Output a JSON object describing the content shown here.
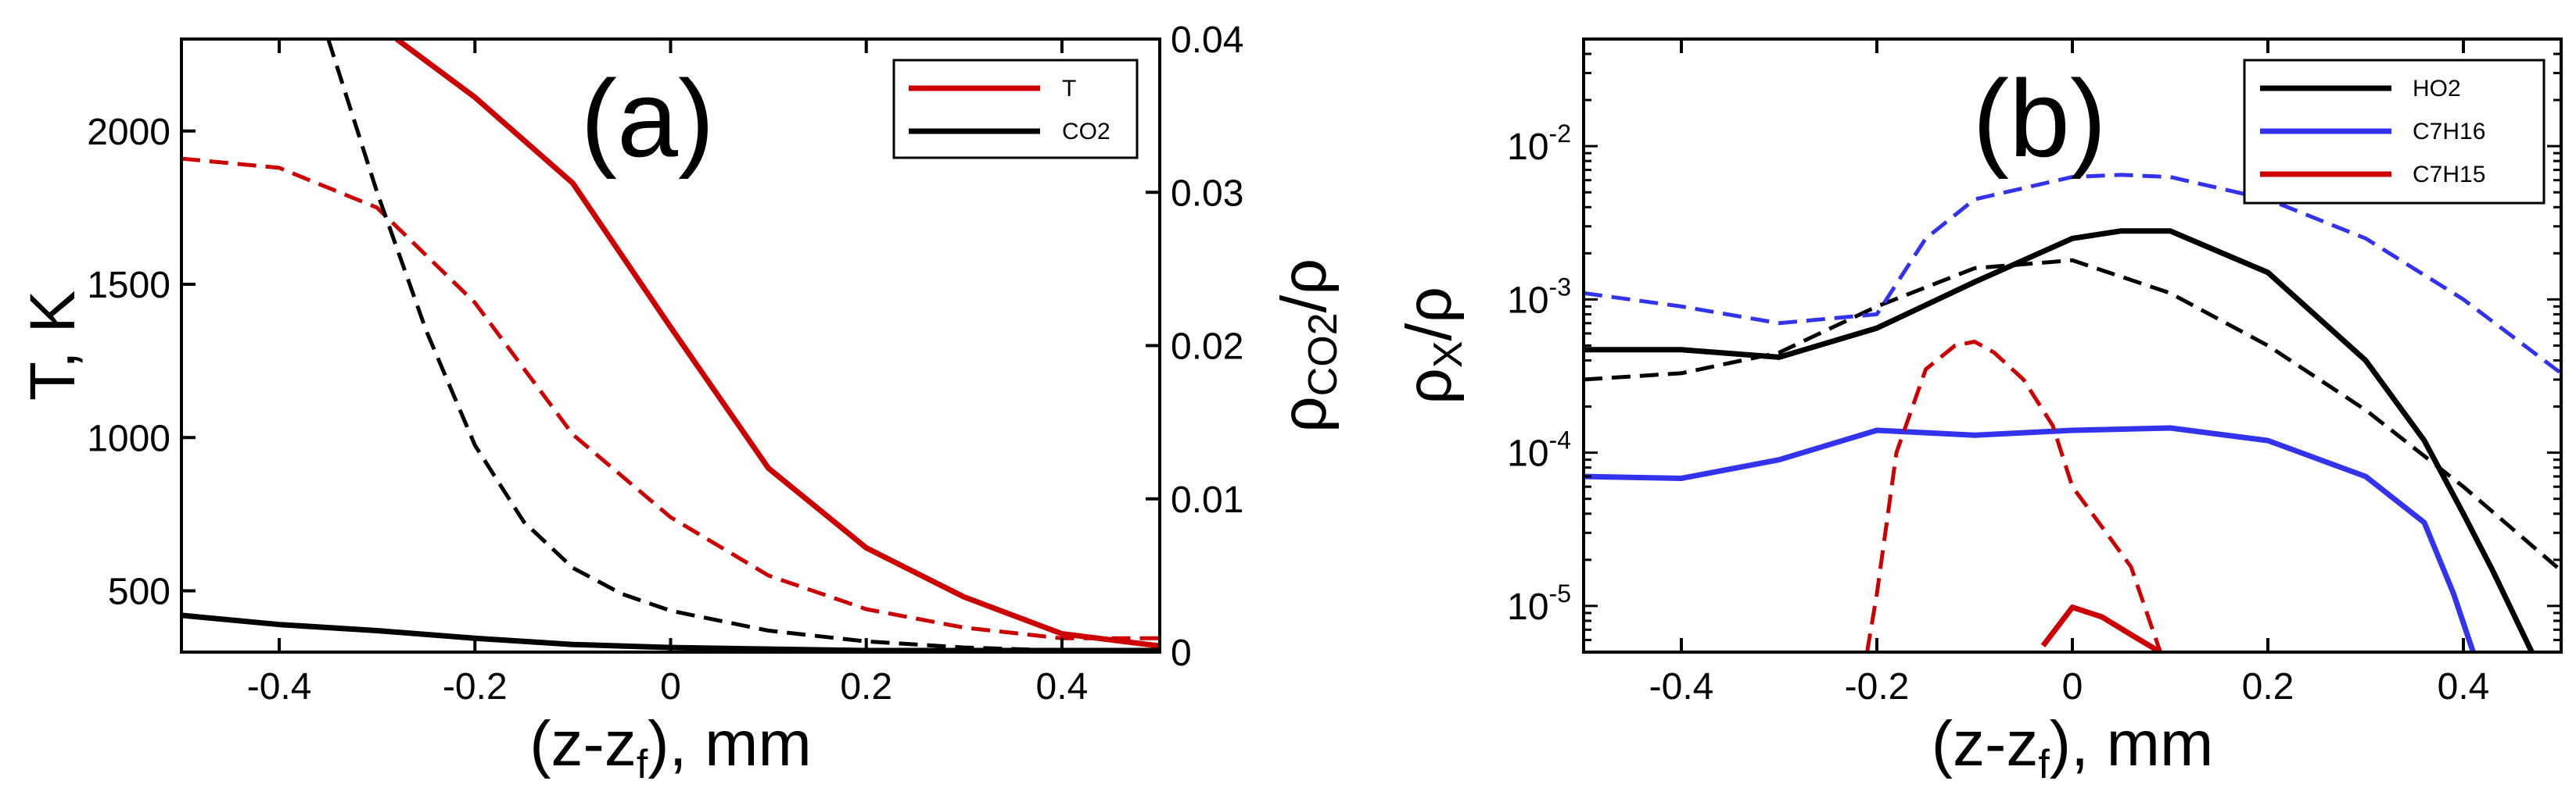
{
  "chart_data": [
    {
      "panel": "a",
      "type": "line",
      "title": "",
      "panel_label": "(a)",
      "xlabel": "(z-z_f), mm",
      "xlabel_main": "(z-z",
      "xlabel_sub": "f",
      "xlabel_tail": "), mm",
      "ylabel": "T, K",
      "y2label_main": "ρ",
      "y2label_sub": "CO2",
      "y2label_tail": "/ρ",
      "xlim": [
        -0.5,
        0.5
      ],
      "ylim": [
        300,
        2300
      ],
      "y2lim": [
        0,
        0.04
      ],
      "xticks": [
        "-0.4",
        "-0.2",
        "0",
        "0.2",
        "0.4"
      ],
      "xtick_values": [
        -0.4,
        -0.2,
        0,
        0.2,
        0.4
      ],
      "yticks": [
        "500",
        "1000",
        "1500",
        "2000"
      ],
      "ytick_values": [
        500,
        1000,
        1500,
        2000
      ],
      "y2ticks": [
        "0",
        "0.01",
        "0.02",
        "0.03",
        "0.04"
      ],
      "y2tick_values": [
        0,
        0.01,
        0.02,
        0.03,
        0.04
      ],
      "legend": [
        {
          "label": "T",
          "color": "#cc0000"
        },
        {
          "label": "CO2",
          "color": "#000000"
        }
      ],
      "series": [
        {
          "name": "T",
          "axis": "left",
          "color": "#cc0000",
          "dash": false,
          "x": [
            -0.28,
            -0.2,
            -0.1,
            0.0,
            0.1,
            0.2,
            0.3,
            0.4,
            0.5
          ],
          "y": [
            2300,
            2110,
            1830,
            1360,
            900,
            640,
            480,
            360,
            320
          ]
        },
        {
          "name": "T (dashed)",
          "axis": "left",
          "color": "#cc0000",
          "dash": true,
          "x": [
            -0.5,
            -0.4,
            -0.3,
            -0.2,
            -0.1,
            0.0,
            0.1,
            0.2,
            0.3,
            0.4,
            0.5
          ],
          "y": [
            1910,
            1880,
            1750,
            1440,
            1010,
            740,
            550,
            440,
            380,
            345,
            345
          ]
        },
        {
          "name": "CO2",
          "axis": "right",
          "color": "#000000",
          "dash": false,
          "x": [
            -0.5,
            -0.4,
            -0.3,
            -0.2,
            -0.1,
            0.0,
            0.1,
            0.2,
            0.3,
            0.4,
            0.5
          ],
          "y": [
            0.0024,
            0.0018,
            0.0014,
            0.0009,
            0.0005,
            0.0003,
            0.0002,
            0.0001,
            0.0001,
            0.0001,
            0.0001
          ]
        },
        {
          "name": "CO2 (dashed)",
          "axis": "right",
          "color": "#000000",
          "dash": true,
          "x": [
            -0.35,
            -0.3,
            -0.25,
            -0.2,
            -0.15,
            -0.1,
            -0.05,
            0.0,
            0.1,
            0.2,
            0.3,
            0.4
          ],
          "y": [
            0.04,
            0.03,
            0.021,
            0.0135,
            0.0085,
            0.0055,
            0.0038,
            0.0027,
            0.0014,
            0.0007,
            0.0003,
            0.0001
          ]
        }
      ]
    },
    {
      "panel": "b",
      "type": "line",
      "title": "",
      "panel_label": "(b)",
      "xlabel": "(z-z_f), mm",
      "xlabel_main": "(z-z",
      "xlabel_sub": "f",
      "xlabel_tail": "), mm",
      "ylabel": "ρ_X/ρ",
      "ylabel_main": "ρ",
      "ylabel_sub": "X",
      "ylabel_tail": "/ρ",
      "yscale": "log",
      "xlim": [
        -0.5,
        0.5
      ],
      "ylim": [
        5e-06,
        0.05
      ],
      "xticks": [
        "-0.4",
        "-0.2",
        "0",
        "0.2",
        "0.4"
      ],
      "xtick_values": [
        -0.4,
        -0.2,
        0,
        0.2,
        0.4
      ],
      "yticks": [
        {
          "base": "10",
          "exp": "-5",
          "value": 1e-05
        },
        {
          "base": "10",
          "exp": "-4",
          "value": 0.0001
        },
        {
          "base": "10",
          "exp": "-3",
          "value": 0.001
        },
        {
          "base": "10",
          "exp": "-2",
          "value": 0.01
        }
      ],
      "legend": [
        {
          "label": "HO2",
          "color": "#000000"
        },
        {
          "label": "C7H16",
          "color": "#3333ee"
        },
        {
          "label": "C7H15",
          "color": "#cc0000"
        }
      ],
      "series": [
        {
          "name": "HO2",
          "color": "#000000",
          "dash": false,
          "x": [
            -0.5,
            -0.4,
            -0.3,
            -0.2,
            -0.1,
            0.0,
            0.05,
            0.1,
            0.2,
            0.3,
            0.36,
            0.4,
            0.43,
            0.47
          ],
          "y": [
            0.00047,
            0.00047,
            0.00042,
            0.00065,
            0.0013,
            0.0025,
            0.0028,
            0.0028,
            0.0015,
            0.0004,
            0.00012,
            4e-05,
            1.7e-05,
            5e-06
          ]
        },
        {
          "name": "HO2 (dashed)",
          "color": "#000000",
          "dash": true,
          "x": [
            -0.5,
            -0.4,
            -0.3,
            -0.2,
            -0.1,
            0.0,
            0.1,
            0.2,
            0.3,
            0.4,
            0.5
          ],
          "y": [
            0.0003,
            0.00033,
            0.00045,
            0.0009,
            0.0016,
            0.0018,
            0.0011,
            0.0005,
            0.00019,
            6e-05,
            1.7e-05
          ]
        },
        {
          "name": "C7H16",
          "color": "#3333ee",
          "dash": false,
          "x": [
            -0.5,
            -0.4,
            -0.3,
            -0.2,
            -0.1,
            0.0,
            0.1,
            0.2,
            0.3,
            0.36,
            0.39,
            0.41
          ],
          "y": [
            7e-05,
            6.8e-05,
            9e-05,
            0.00014,
            0.00013,
            0.00014,
            0.000145,
            0.00012,
            7e-05,
            3.5e-05,
            1.2e-05,
            5e-06
          ]
        },
        {
          "name": "C7H16 (dashed)",
          "color": "#3333ee",
          "dash": true,
          "x": [
            -0.5,
            -0.4,
            -0.3,
            -0.2,
            -0.15,
            -0.1,
            0.0,
            0.05,
            0.1,
            0.2,
            0.3,
            0.4,
            0.5
          ],
          "y": [
            0.0011,
            0.0009,
            0.0007,
            0.0008,
            0.0025,
            0.0045,
            0.0063,
            0.0065,
            0.0063,
            0.0045,
            0.0025,
            0.001,
            0.00033
          ]
        },
        {
          "name": "C7H15",
          "color": "#cc0000",
          "dash": false,
          "x": [
            -0.03,
            0.0,
            0.03,
            0.06,
            0.09
          ],
          "y": [
            5.5e-06,
            9.8e-06,
            8.5e-06,
            6.5e-06,
            5e-06
          ]
        },
        {
          "name": "C7H15 (dashed)",
          "color": "#cc0000",
          "dash": true,
          "x": [
            -0.21,
            -0.2,
            -0.18,
            -0.15,
            -0.12,
            -0.1,
            -0.08,
            -0.05,
            -0.02,
            0.0,
            0.03,
            0.06,
            0.09
          ],
          "y": [
            5e-06,
            1.2e-05,
            0.0001,
            0.00035,
            0.0005,
            0.00053,
            0.00045,
            0.0003,
            0.00015,
            6e-05,
            3.3e-05,
            1.8e-05,
            5e-06
          ]
        }
      ]
    }
  ]
}
